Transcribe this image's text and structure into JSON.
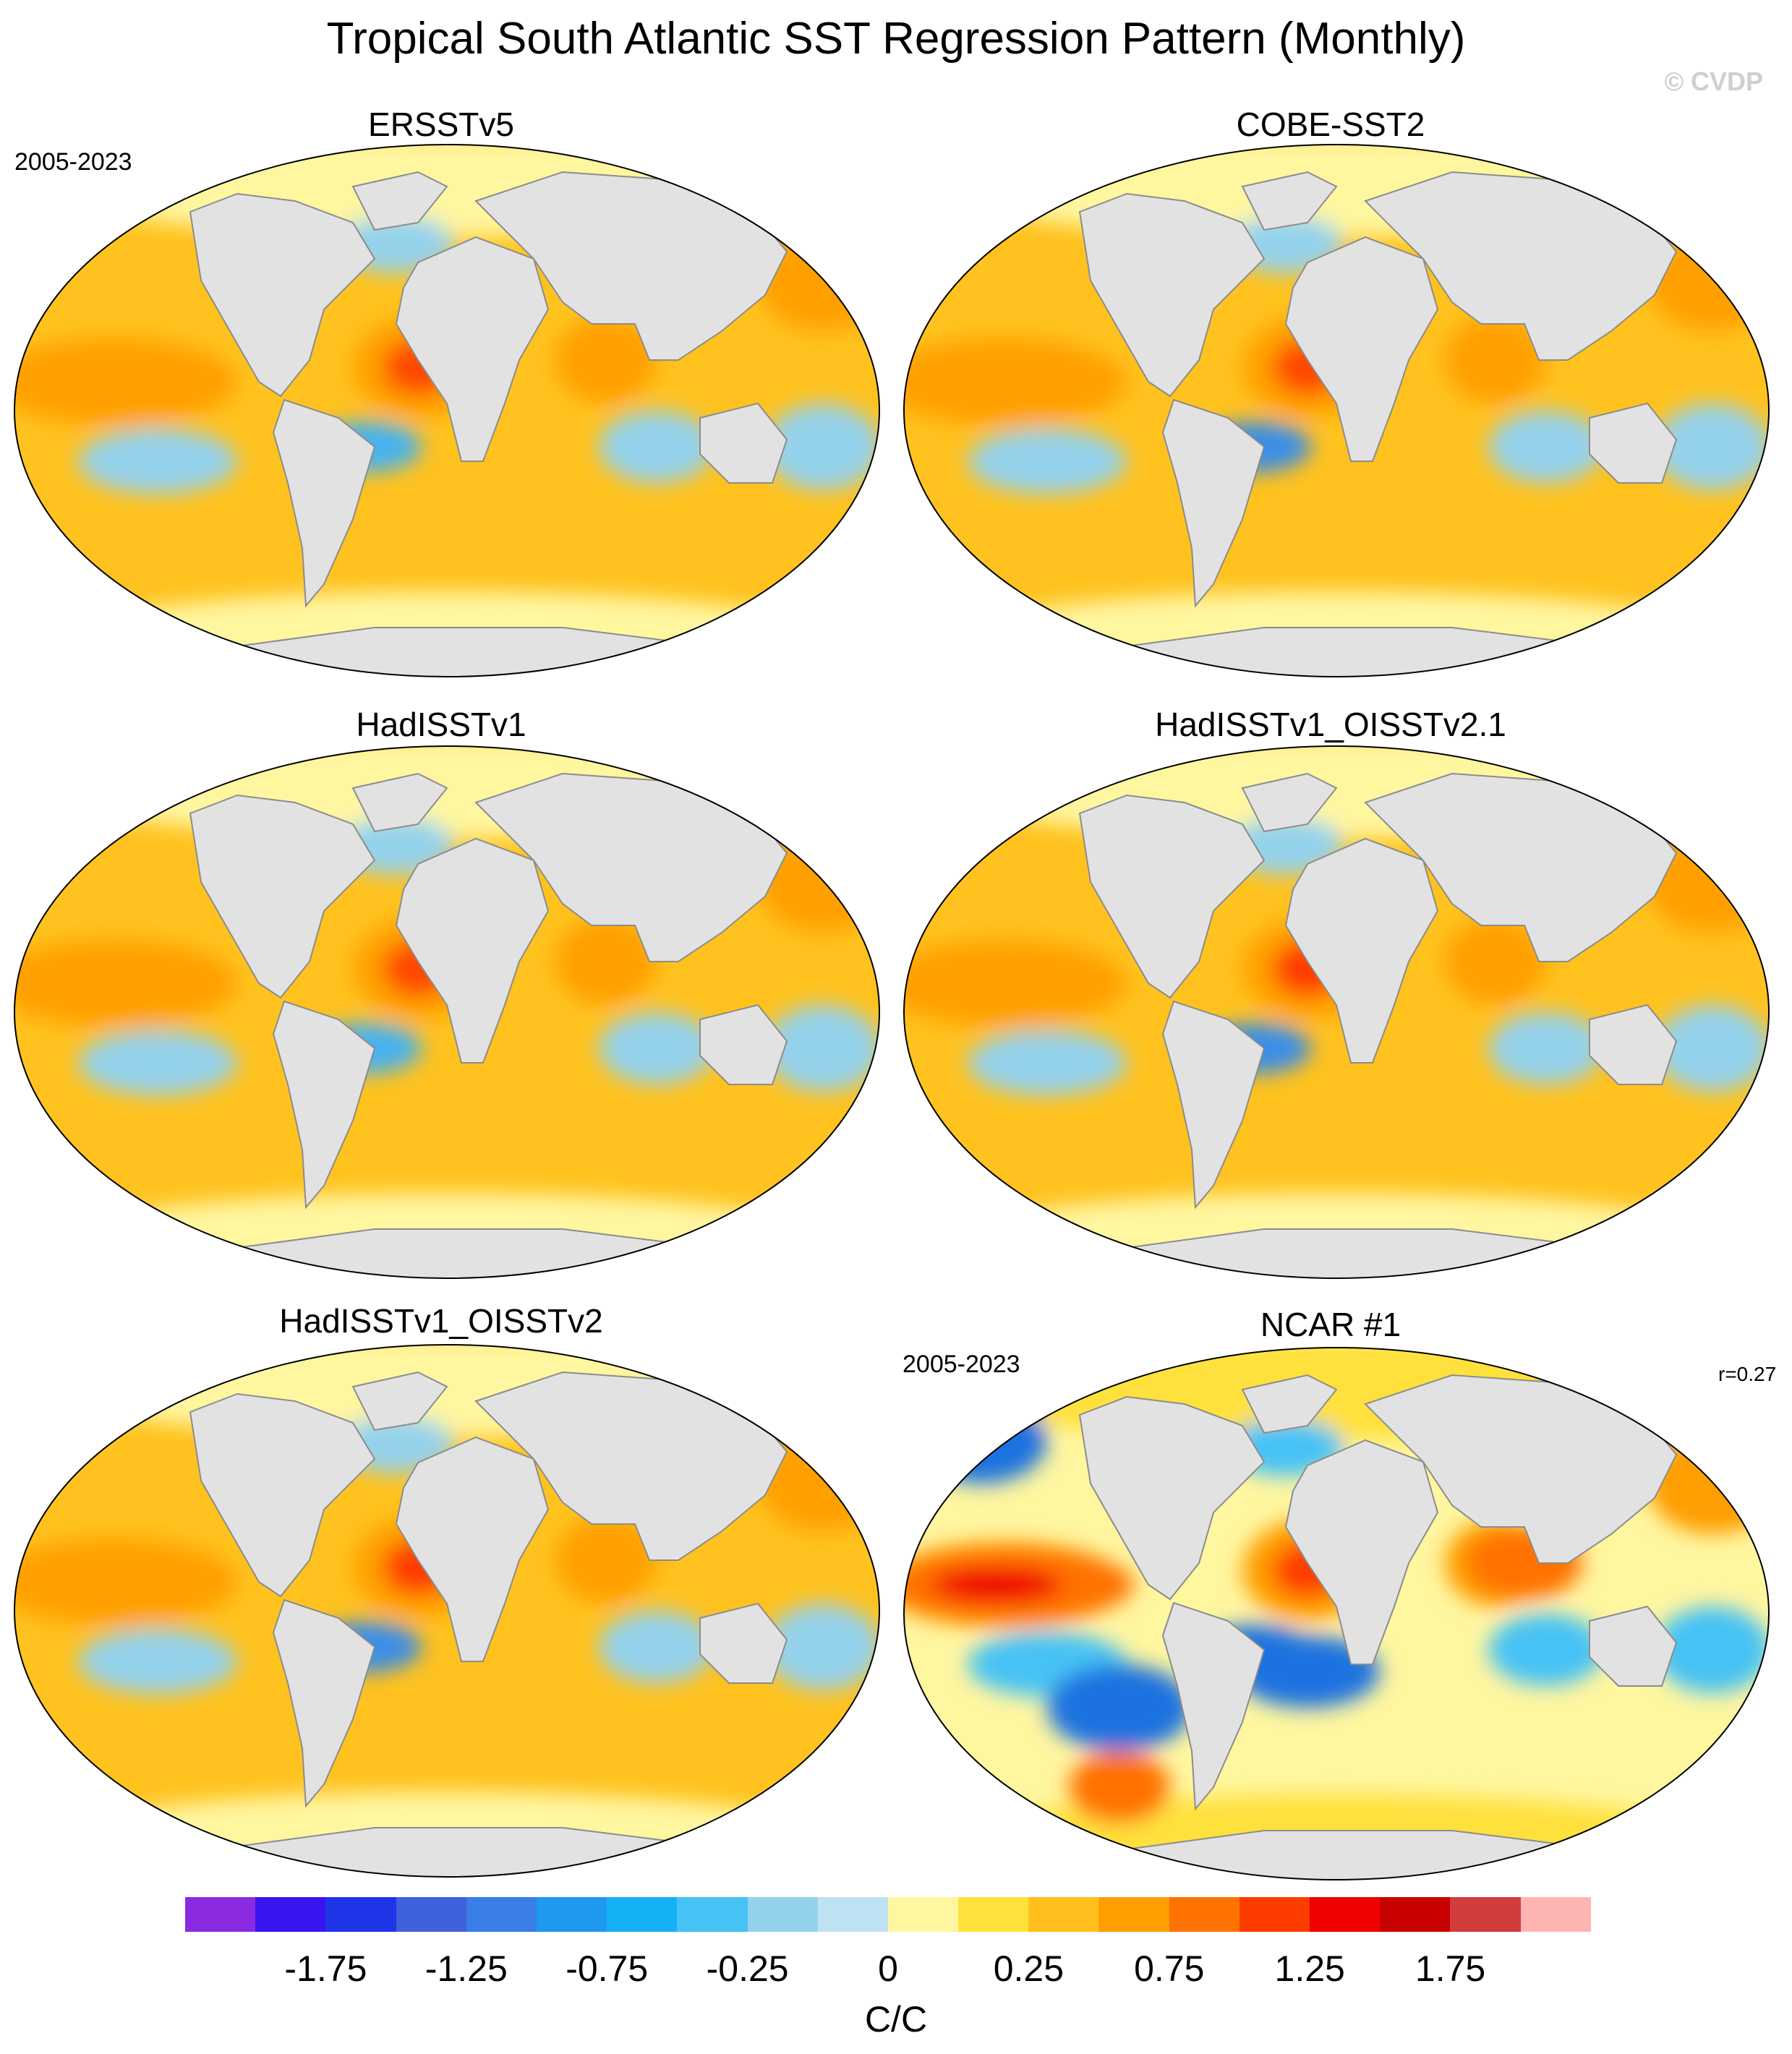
{
  "figure": {
    "title": "Tropical South Atlantic SST Regression Pattern (Monthly)",
    "watermark": "© CVDP",
    "units": "C/C"
  },
  "panels": [
    {
      "title": "ERSSTv5",
      "period": "2005-2023",
      "corr": "",
      "accent": "#f26400",
      "variant": "a"
    },
    {
      "title": "COBE-SST2",
      "period": "",
      "corr": "",
      "accent": "#f26400",
      "variant": "b"
    },
    {
      "title": "HadISSTv1",
      "period": "",
      "corr": "",
      "accent": "#f26400",
      "variant": "a"
    },
    {
      "title": "HadISSTv1_OISSTv2.1",
      "period": "",
      "corr": "",
      "accent": "#f26400",
      "variant": "c"
    },
    {
      "title": "HadISSTv1_OISSTv2",
      "period": "",
      "corr": "",
      "accent": "#f26400",
      "variant": "c"
    },
    {
      "title": "NCAR #1",
      "period": "2005-2023",
      "corr": "r=0.27",
      "accent": "#f23000",
      "variant": "d"
    }
  ],
  "colorbar": {
    "colors": [
      "#8a2be2",
      "#3a14f0",
      "#1f35e8",
      "#3f62dc",
      "#3a7ee8",
      "#1f98f0",
      "#14b2f5",
      "#46c2f5",
      "#94d2ec",
      "#bfe2f2",
      "#fff6a0",
      "#ffe13c",
      "#ffc01e",
      "#ff9e00",
      "#ff7200",
      "#ff3c00",
      "#f00000",
      "#c80000",
      "#d23c3c",
      "#ffb4b4"
    ],
    "tick_labels": [
      "-1.75",
      "-1.25",
      "-0.75",
      "-0.25",
      "0",
      "0.25",
      "0.75",
      "1.25",
      "1.75"
    ]
  }
}
